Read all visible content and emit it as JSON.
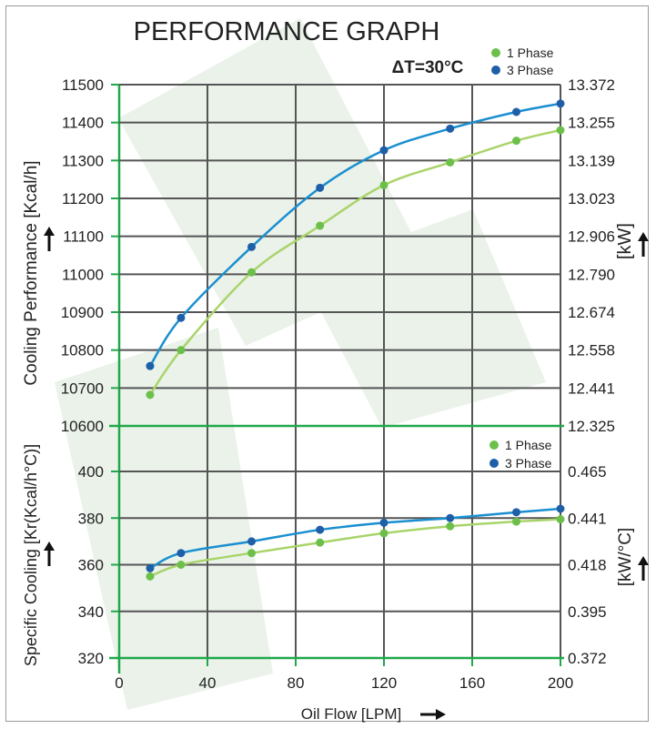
{
  "page": {
    "title": "PERFORMANCE GRAPH",
    "delta_t": "ΔT=30°C"
  },
  "colors": {
    "phase1": "#6cc04a",
    "phase1_curve": "#a9d46a",
    "phase3": "#1e5fa8",
    "phase3_curve": "#1a8fd0",
    "grid": "#555555",
    "green_axis": "#20a84a",
    "watermark": "#eaf2ea"
  },
  "chart_data": [
    {
      "type": "line",
      "title": "PERFORMANCE GRAPH",
      "annotation": "ΔT=30°C",
      "xlabel": "",
      "ylabel": "Cooling Performance [Kcal/h]",
      "ylabel_right": "[kW]",
      "x": [
        14,
        28,
        60,
        91,
        120,
        150,
        180,
        200
      ],
      "xlim": [
        0,
        200
      ],
      "ylim": [
        10600,
        11500
      ],
      "yticks": [
        "11500",
        "11400",
        "11300",
        "11200",
        "11100",
        "11000",
        "10900",
        "10800",
        "10700",
        "10600"
      ],
      "yticks_right": [
        "13.372",
        "13.255",
        "13.139",
        "13.023",
        "12.906",
        "12.790",
        "12.674",
        "12.558",
        "12.441",
        "12.325"
      ],
      "legend_position": "top-right",
      "grid": true,
      "series": [
        {
          "name": "1 Phase",
          "values": [
            10682,
            10800,
            11005,
            11128,
            11235,
            11295,
            11352,
            11380
          ]
        },
        {
          "name": "3 Phase",
          "values": [
            10758,
            10885,
            11072,
            11228,
            11327,
            11384,
            11428,
            11450
          ]
        }
      ]
    },
    {
      "type": "line",
      "xlabel": "Oil Flow [LPM]",
      "ylabel": "Specific Cooling [Kr(Kcal/h°C)]",
      "ylabel_right": "[kW/°C]",
      "x": [
        14,
        28,
        60,
        91,
        120,
        150,
        180,
        200
      ],
      "xlim": [
        0,
        200
      ],
      "xticks": [
        "0",
        "40",
        "80",
        "120",
        "160",
        "200"
      ],
      "ylim": [
        320,
        400
      ],
      "yticks": [
        "400",
        "380",
        "360",
        "340",
        "320"
      ],
      "yticks_right": [
        "0.465",
        "0.441",
        "0.418",
        "0.395",
        "0.372"
      ],
      "legend_position": "top-right",
      "grid": true,
      "series": [
        {
          "name": "1 Phase",
          "values": [
            355,
            360,
            365,
            369.5,
            373.5,
            376.5,
            378.5,
            379.5
          ]
        },
        {
          "name": "3 Phase",
          "values": [
            358.5,
            365,
            370,
            375,
            378,
            380,
            382.5,
            384
          ]
        }
      ]
    }
  ]
}
